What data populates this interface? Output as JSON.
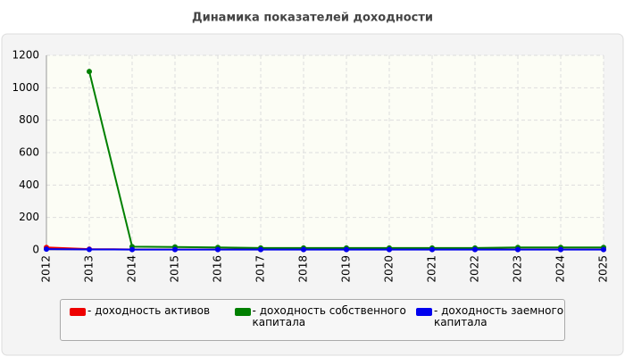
{
  "chart_data": {
    "type": "line",
    "title": "Динамика показателей доходности",
    "categories": [
      "2012",
      "2013",
      "2014",
      "2015",
      "2016",
      "2017",
      "2018",
      "2019",
      "2020",
      "2021",
      "2022",
      "2023",
      "2024",
      "2025"
    ],
    "series": [
      {
        "name": "- доходность активов",
        "color": "#ee0000",
        "values": [
          15,
          5,
          3,
          3,
          3,
          3,
          3,
          3,
          3,
          3,
          3,
          3,
          3,
          3
        ]
      },
      {
        "name": "- доходность собственного капитала",
        "color": "#008000",
        "values": [
          null,
          1100,
          20,
          18,
          15,
          12,
          12,
          12,
          12,
          12,
          12,
          15,
          15,
          15
        ]
      },
      {
        "name": "- доходность заемного капитала",
        "color": "#0000ee",
        "values": [
          5,
          3,
          2,
          2,
          2,
          2,
          2,
          2,
          2,
          2,
          2,
          2,
          2,
          2
        ]
      }
    ],
    "ylim": [
      0,
      1200
    ],
    "yticks": [
      0,
      200,
      400,
      600,
      800,
      1000,
      1200
    ],
    "grid": true
  }
}
